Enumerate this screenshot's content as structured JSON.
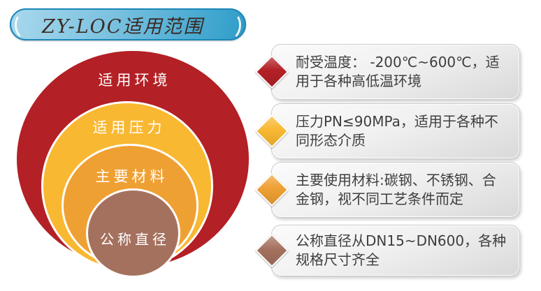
{
  "banner": {
    "title": "ZY-LOC适用范围",
    "fill_left": "#a8d8ec",
    "fill_right": "#2e9dc9",
    "border_color": "#1a87b7"
  },
  "venn": {
    "rings": [
      {
        "id": "environment",
        "label": "适用环境",
        "color": "#b32025"
      },
      {
        "id": "pressure",
        "label": "适用压力",
        "color": "#f9b832"
      },
      {
        "id": "material",
        "label": "主要材料",
        "color": "#efa033"
      },
      {
        "id": "diameter",
        "label": "公称直径",
        "color": "#a5715f"
      }
    ]
  },
  "callouts": [
    {
      "id": "temperature",
      "diamond_color": "#b32025",
      "text": "耐受温度： -200℃~600℃，适用于各种高低温环境"
    },
    {
      "id": "pressure",
      "diamond_color": "#f9b832",
      "text": "压力PN≤90MPa，适用于各种不同形态介质"
    },
    {
      "id": "material",
      "diamond_color": "#efa033",
      "text": "主要使用材料:碳钢、不锈钢、合金钢，视不同工艺条件而定"
    },
    {
      "id": "diameter",
      "diamond_color": "#a5715f",
      "text": "公称直径从DN15~DN600，各种规格尺寸齐全"
    }
  ]
}
